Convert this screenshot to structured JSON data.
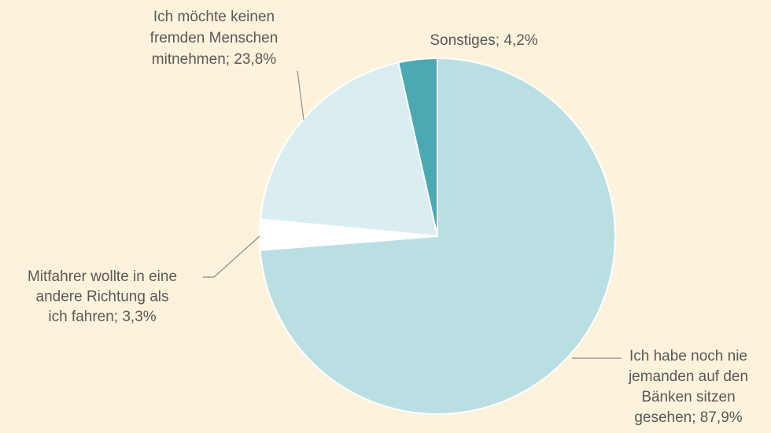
{
  "chart_data": {
    "type": "pie",
    "values": [
      87.9,
      3.3,
      23.8,
      4.2
    ],
    "value_labels": [
      [
        "Ich habe noch nie",
        "jemanden auf den",
        "Bänken sitzen",
        "gesehen; 87,9%"
      ],
      [
        "Mitfahrer wollte in eine",
        "andere Richtung als",
        "ich fahren; 3,3%"
      ],
      [
        "Ich möchte keinen",
        "fremden Menschen",
        "mitnehmen; 23,8%"
      ],
      [
        "Sonstiges; 4,2%"
      ]
    ],
    "colors": [
      "#b9dfe3",
      "#ffffff",
      "#daeef1",
      "#4aa9b3"
    ]
  }
}
